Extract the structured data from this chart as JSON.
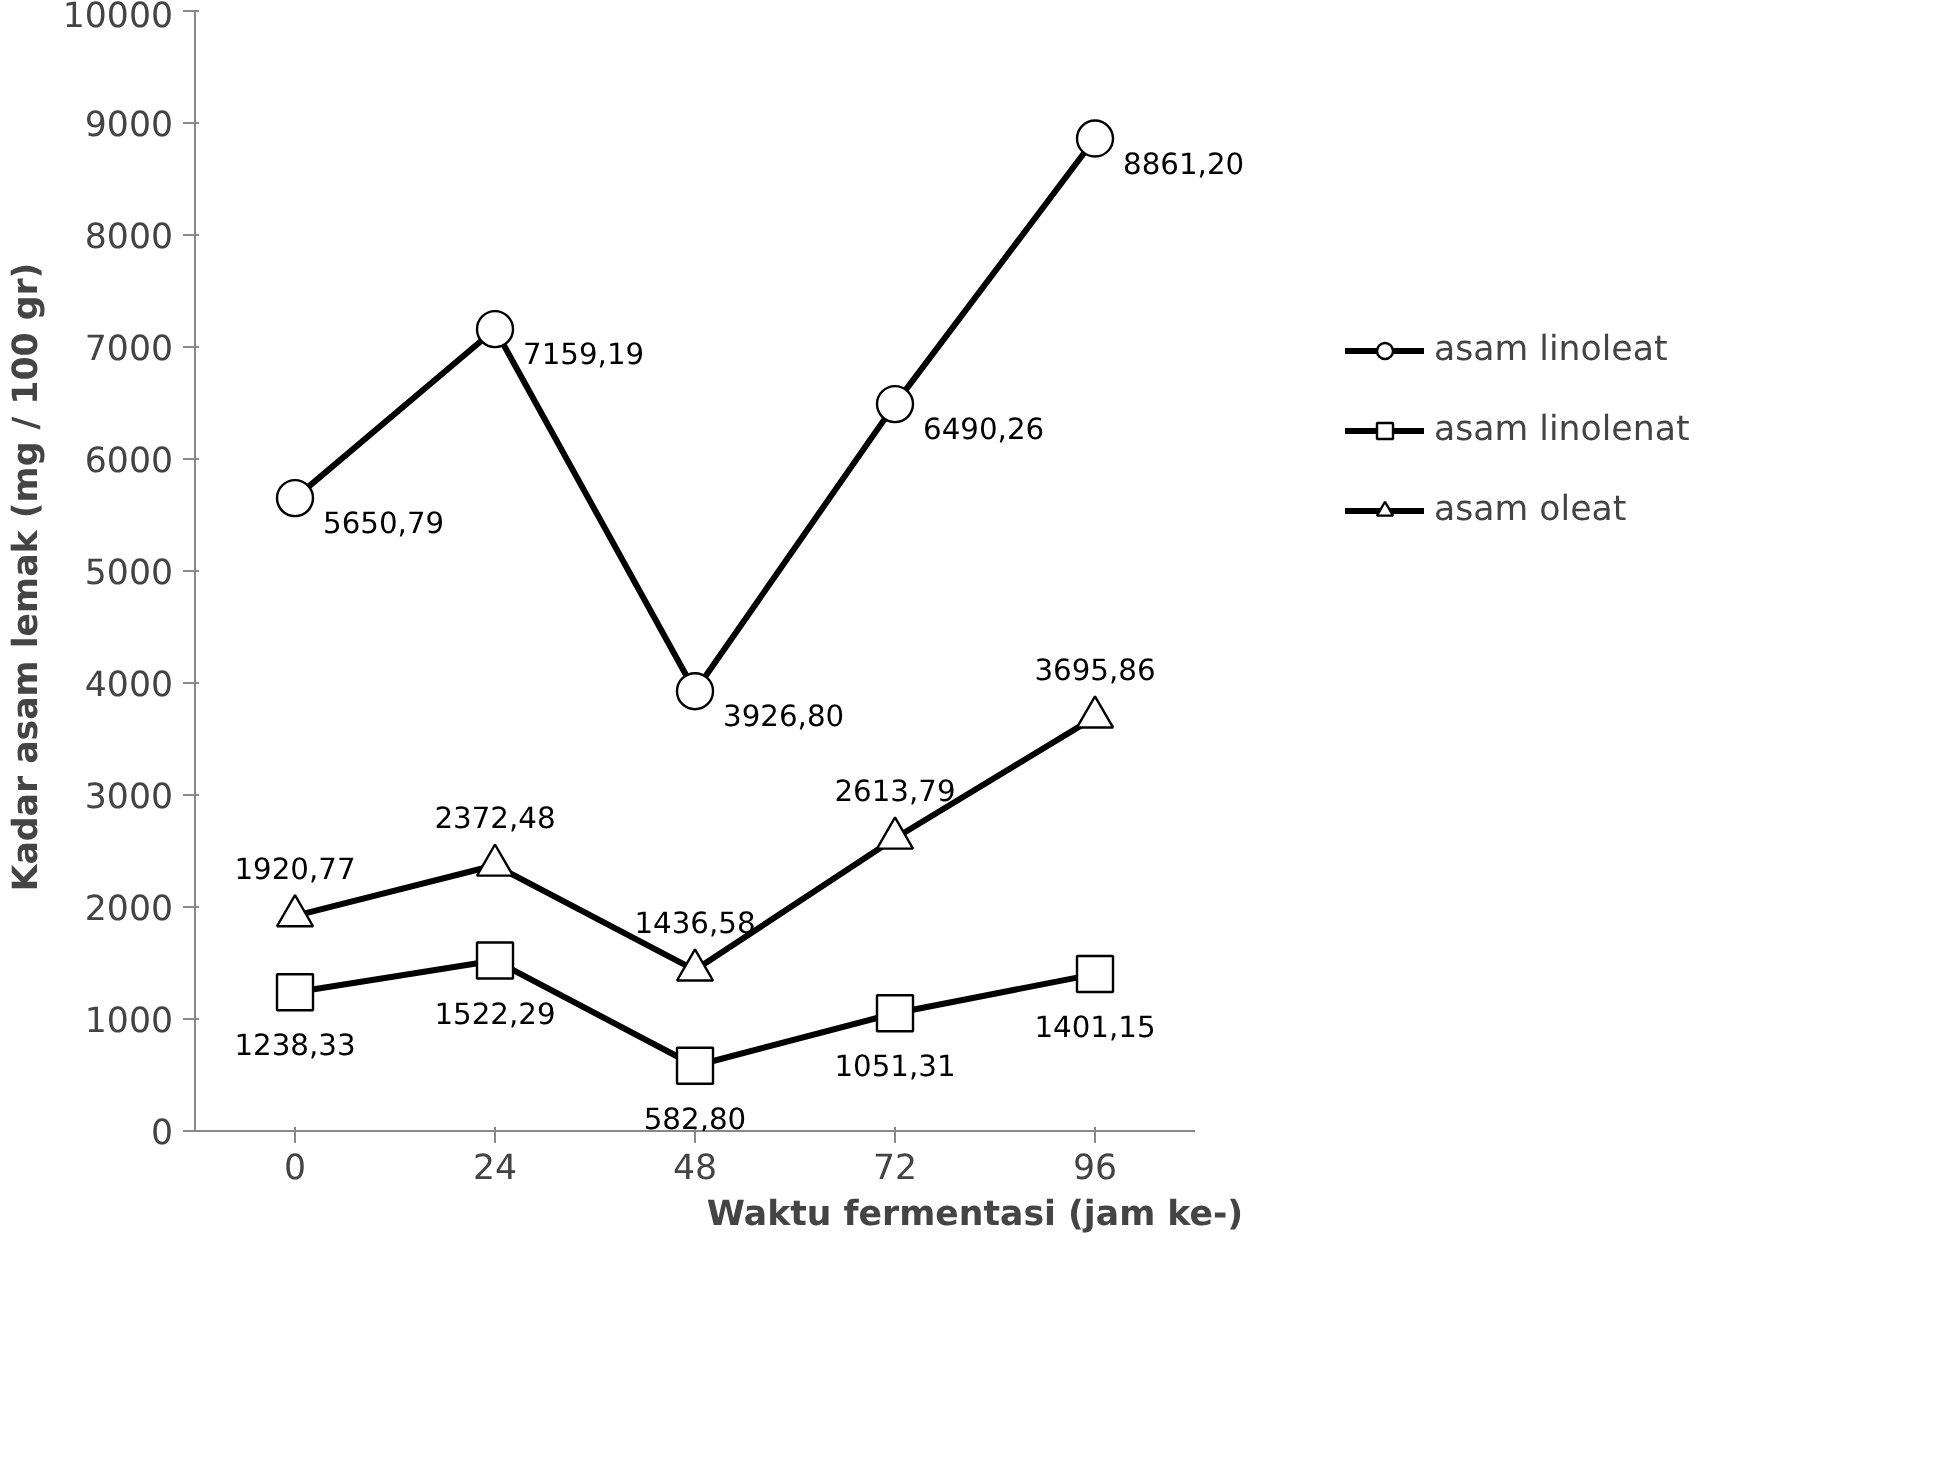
{
  "chart_data": {
    "type": "line",
    "xlabel": "Waktu fermentasi (jam ke-)",
    "ylabel": "Kadar  asam lemak (mg / 100 gr)",
    "categories": [
      "0",
      "24",
      "48",
      "72",
      "96"
    ],
    "ylim": [
      0,
      10000
    ],
    "yticks": [
      0,
      1000,
      2000,
      3000,
      4000,
      5000,
      6000,
      7000,
      8000,
      9000,
      10000
    ],
    "grid": false,
    "legend": "right",
    "line_style": "solid",
    "series": [
      {
        "name": "asam linoleat",
        "color": "#000000",
        "marker": "circle",
        "values": [
          5650.79,
          7159.19,
          3926.8,
          6490.26,
          8861.2
        ],
        "value_labels": [
          "5650,79",
          "7159,19",
          "3926,80",
          "6490,26",
          "8861,20"
        ]
      },
      {
        "name": "asam linolenat",
        "color": "#000000",
        "marker": "square",
        "values": [
          1238.33,
          1522.29,
          582.8,
          1051.31,
          1401.15
        ],
        "value_labels": [
          "1238,33",
          "1522,29",
          "582,80",
          "1051,31",
          "1401,15"
        ]
      },
      {
        "name": "asam oleat",
        "color": "#000000",
        "marker": "triangle",
        "values": [
          1920.77,
          2372.48,
          1436.58,
          2613.79,
          3695.86
        ],
        "value_labels": [
          "1920,77",
          "2372,48",
          "1436,58",
          "2613,79",
          "3695,86"
        ]
      }
    ]
  }
}
